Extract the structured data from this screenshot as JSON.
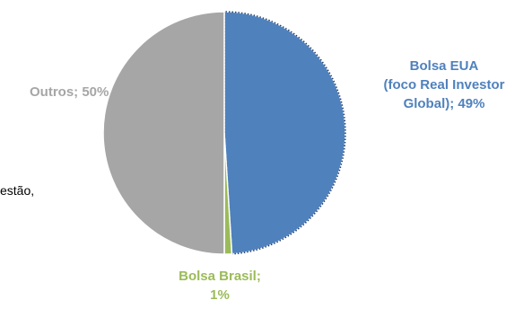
{
  "chart_data": {
    "type": "pie",
    "title": "",
    "slices": [
      {
        "label": "Bolsa EUA (foco Real Investor Global)",
        "value": 49,
        "color": "#4f81bd",
        "border": "dotted-white"
      },
      {
        "label": "Bolsa Brasil",
        "value": 1,
        "color": "#9bbb59"
      },
      {
        "label": "Outros",
        "value": 50,
        "color": "#a6a6a6"
      }
    ],
    "labels": {
      "eua": [
        "Bolsa EUA",
        "(foco Real Investor",
        "Global); 49%"
      ],
      "brasil": [
        "Bolsa Brasil;",
        "1%"
      ],
      "outros": "Outros; 50%"
    },
    "label_colors": {
      "eua": "#4f81bd",
      "brasil": "#9bbb59",
      "outros": "#a6a6a6"
    },
    "legend": "none"
  },
  "clipped_text": "estão,"
}
